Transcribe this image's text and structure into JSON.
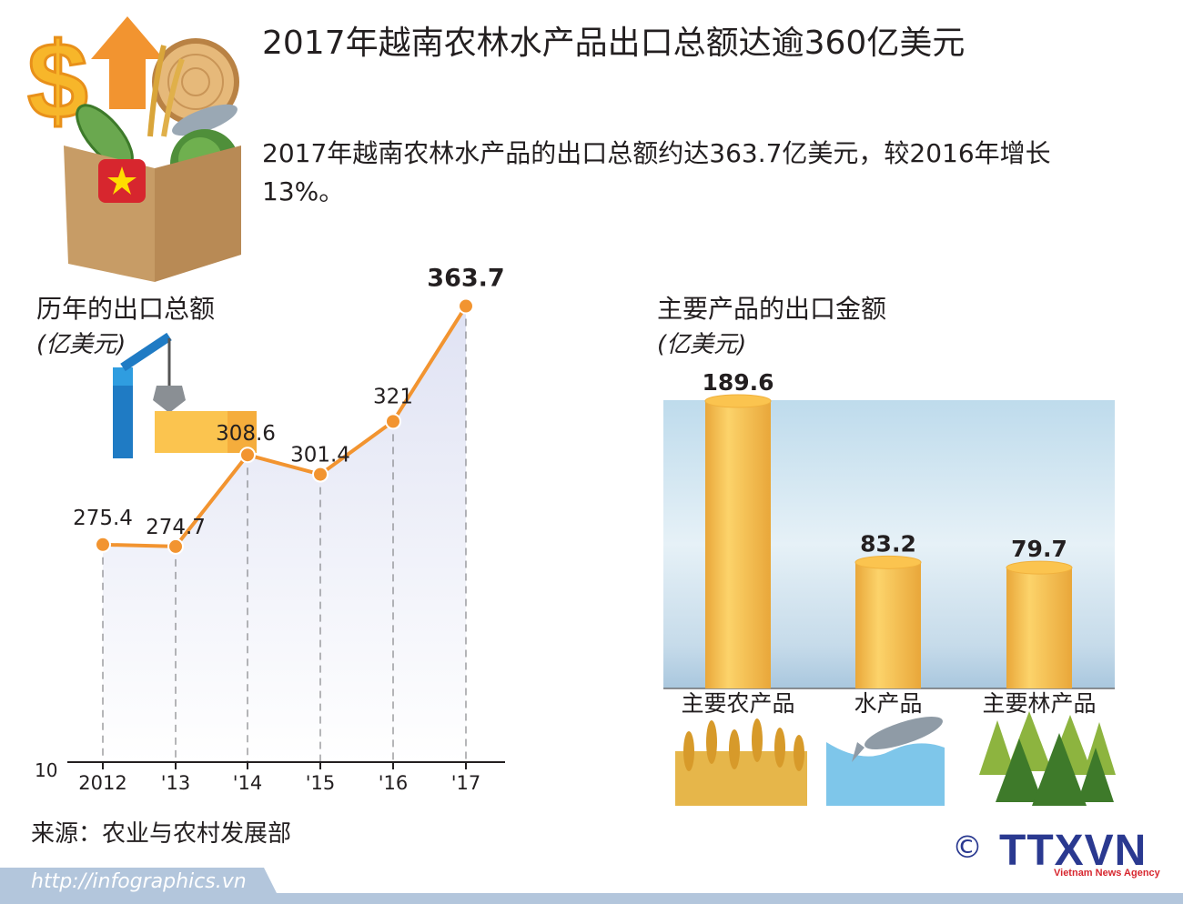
{
  "title": "2017年越南农林水产品出口总额达逾360亿美元",
  "subtitle": "2017年越南农林水产品的出口总额约达363.7亿美元，较2016年增长13%。",
  "line_section": {
    "title": "历年的出口总额",
    "unit": "(亿美元)"
  },
  "bar_section": {
    "title": "主要产品的出口金额",
    "unit": "(亿美元)"
  },
  "source": "来源：农业与农村发展部",
  "footer": {
    "url": "http://infographics.vn",
    "agency": "TTXVN",
    "agency_sub": "Vietnam News Agency",
    "copyright": "©"
  },
  "colors": {
    "line": "#f29430",
    "bar": "#fbc44f",
    "bar_dark": "#e8a834",
    "sky_top": "#cde4f0",
    "sky_bottom": "#d9e6f0",
    "footer": "#b3c6dc",
    "area": "#e9ebf6"
  },
  "chart_data": [
    {
      "type": "line",
      "title": "历年的出口总额",
      "ylabel": "(亿美元)",
      "categories": [
        "2012",
        "'13",
        "'14",
        "'15",
        "'16",
        "'17"
      ],
      "values": [
        275.4,
        274.7,
        308.6,
        301.4,
        321,
        363.7
      ],
      "labels": [
        "275.4",
        "274.7",
        "308.6",
        "301.4",
        "321",
        "363.7"
      ],
      "y_axis_label": "10",
      "grid": false
    },
    {
      "type": "bar",
      "title": "主要产品的出口金额",
      "ylabel": "(亿美元)",
      "categories": [
        "主要农产品",
        "水产品",
        "主要林产品"
      ],
      "values": [
        189.6,
        83.2,
        79.7
      ],
      "labels": [
        "189.6",
        "83.2",
        "79.7"
      ],
      "grid": false
    }
  ]
}
